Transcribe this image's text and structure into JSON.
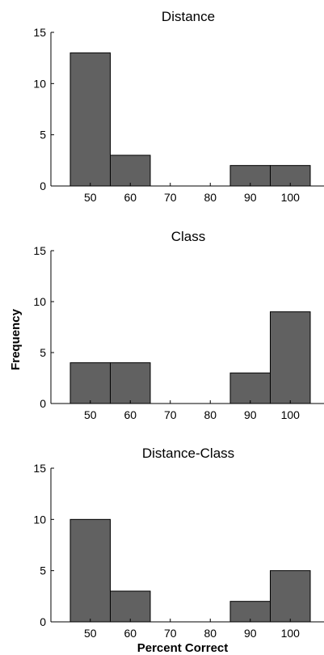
{
  "figure": {
    "ylabel": "Frequency",
    "xlabel": "Percent Correct",
    "bar_color": "#616161"
  },
  "chart_data": [
    {
      "type": "bar",
      "title": "Distance",
      "categories": [
        "50",
        "60",
        "70",
        "80",
        "90",
        "100"
      ],
      "values": [
        13,
        3,
        0,
        0,
        2,
        2
      ],
      "ylim": [
        0,
        15
      ],
      "yticks": [
        0,
        5,
        10,
        15
      ],
      "xlabel": "",
      "ylabel": "",
      "grid": false
    },
    {
      "type": "bar",
      "title": "Class",
      "categories": [
        "50",
        "60",
        "70",
        "80",
        "90",
        "100"
      ],
      "values": [
        4,
        4,
        0,
        0,
        3,
        9
      ],
      "ylim": [
        0,
        15
      ],
      "yticks": [
        0,
        5,
        10,
        15
      ],
      "xlabel": "",
      "ylabel": "Frequency",
      "grid": false
    },
    {
      "type": "bar",
      "title": "Distance-Class",
      "categories": [
        "50",
        "60",
        "70",
        "80",
        "90",
        "100"
      ],
      "values": [
        10,
        3,
        0,
        0,
        2,
        5
      ],
      "ylim": [
        0,
        15
      ],
      "yticks": [
        0,
        5,
        10,
        15
      ],
      "xlabel": "Percent Correct",
      "ylabel": "",
      "grid": false
    }
  ]
}
